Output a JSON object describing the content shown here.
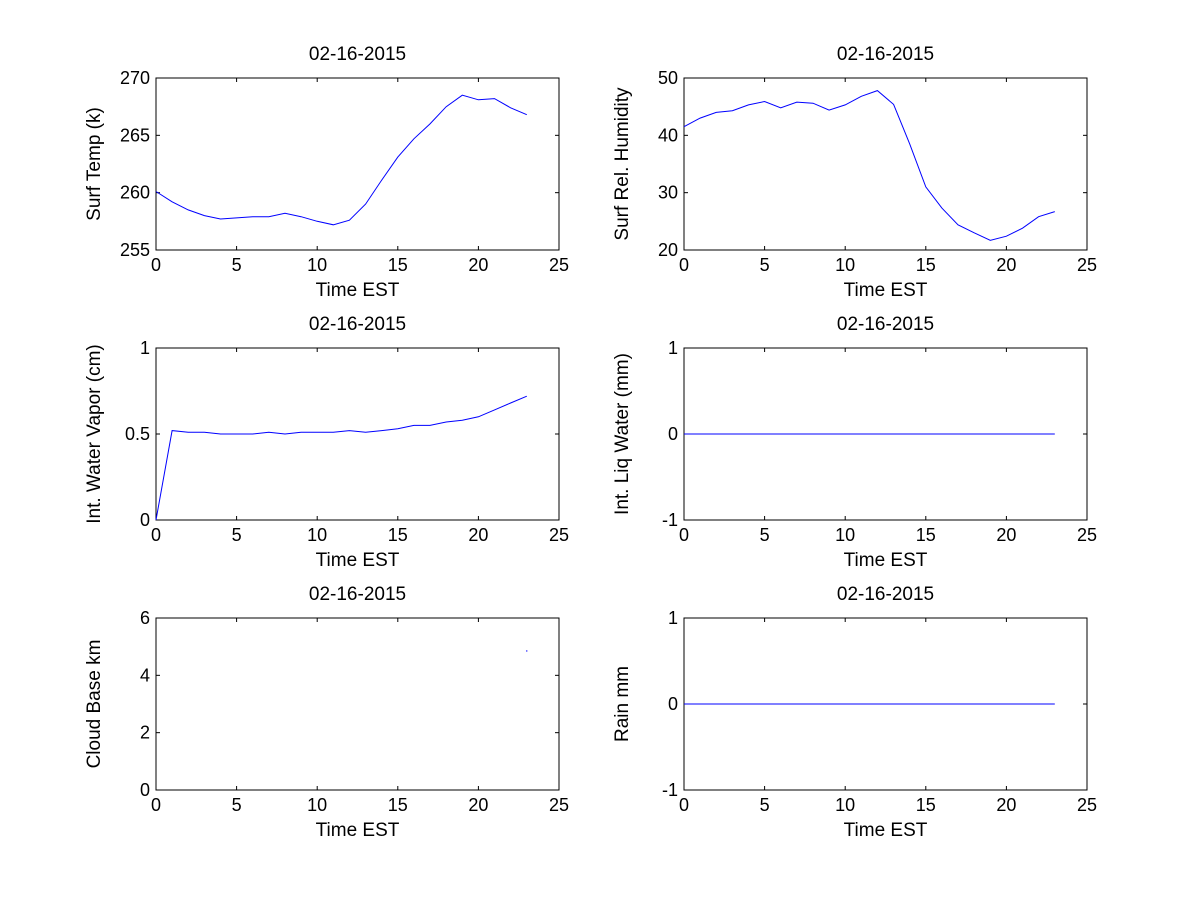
{
  "chart_data": [
    {
      "type": "line",
      "title": "02-16-2015",
      "xlabel": "Time EST",
      "ylabel": "Surf Temp (k)",
      "xlim": [
        0,
        25
      ],
      "ylim": [
        255,
        270
      ],
      "xticks": [
        0,
        5,
        10,
        15,
        20,
        25
      ],
      "yticks": [
        255,
        260,
        265,
        270
      ],
      "grid": false,
      "line_color": "#0000ff",
      "series": [
        {
          "x": [
            0,
            1,
            2,
            3,
            4,
            5,
            6,
            7,
            8,
            9,
            10,
            11,
            12,
            13,
            14,
            15,
            16,
            17,
            18,
            19,
            20,
            21,
            22,
            23
          ],
          "y": [
            260.1,
            259.2,
            258.5,
            258.0,
            257.7,
            257.8,
            257.9,
            257.9,
            258.2,
            257.9,
            257.5,
            257.2,
            257.6,
            259.0,
            261.1,
            263.1,
            264.7,
            266.0,
            267.5,
            268.5,
            268.1,
            268.2,
            267.4,
            266.8
          ]
        }
      ]
    },
    {
      "type": "line",
      "title": "02-16-2015",
      "xlabel": "Time EST",
      "ylabel": "Surf Rel. Humidity",
      "xlim": [
        0,
        25
      ],
      "ylim": [
        20,
        50
      ],
      "xticks": [
        0,
        5,
        10,
        15,
        20,
        25
      ],
      "yticks": [
        20,
        30,
        40,
        50
      ],
      "grid": false,
      "line_color": "#0000ff",
      "series": [
        {
          "x": [
            0,
            1,
            2,
            3,
            4,
            5,
            6,
            7,
            8,
            9,
            10,
            11,
            12,
            13,
            14,
            15,
            16,
            17,
            18,
            19,
            20,
            21,
            22,
            23
          ],
          "y": [
            41.5,
            43.0,
            44.0,
            44.3,
            45.3,
            45.9,
            44.8,
            45.8,
            45.6,
            44.4,
            45.3,
            46.8,
            47.8,
            45.4,
            38.5,
            31.0,
            27.3,
            24.4,
            23.0,
            21.7,
            22.4,
            23.8,
            25.8,
            26.7
          ]
        }
      ]
    },
    {
      "type": "line",
      "title": "02-16-2015",
      "xlabel": "Time EST",
      "ylabel": "Int. Water Vapor (cm)",
      "xlim": [
        0,
        25
      ],
      "ylim": [
        0,
        1
      ],
      "xticks": [
        0,
        5,
        10,
        15,
        20,
        25
      ],
      "yticks": [
        0,
        0.5,
        1
      ],
      "grid": false,
      "line_color": "#0000ff",
      "series": [
        {
          "x": [
            0,
            1,
            2,
            3,
            4,
            5,
            6,
            7,
            8,
            9,
            10,
            11,
            12,
            13,
            14,
            15,
            16,
            17,
            18,
            19,
            20,
            21,
            22,
            23
          ],
          "y": [
            0.0,
            0.52,
            0.51,
            0.51,
            0.5,
            0.5,
            0.5,
            0.51,
            0.5,
            0.51,
            0.51,
            0.51,
            0.52,
            0.51,
            0.52,
            0.53,
            0.55,
            0.55,
            0.57,
            0.58,
            0.6,
            0.64,
            0.68,
            0.72
          ]
        }
      ]
    },
    {
      "type": "line",
      "title": "02-16-2015",
      "xlabel": "Time EST",
      "ylabel": "Int. Liq Water (mm)",
      "xlim": [
        0,
        25
      ],
      "ylim": [
        -1,
        1
      ],
      "xticks": [
        0,
        5,
        10,
        15,
        20,
        25
      ],
      "yticks": [
        -1,
        0,
        1
      ],
      "grid": false,
      "line_color": "#0000ff",
      "series": [
        {
          "x": [
            0,
            23
          ],
          "y": [
            0,
            0
          ]
        }
      ]
    },
    {
      "type": "scatter",
      "title": "02-16-2015",
      "xlabel": "Time EST",
      "ylabel": "Cloud Base km",
      "xlim": [
        0,
        25
      ],
      "ylim": [
        0,
        6
      ],
      "xticks": [
        0,
        5,
        10,
        15,
        20,
        25
      ],
      "yticks": [
        0,
        2,
        4,
        6
      ],
      "grid": false,
      "line_color": "#0000ff",
      "series": [
        {
          "x": [
            23
          ],
          "y": [
            4.85
          ]
        }
      ]
    },
    {
      "type": "line",
      "title": "02-16-2015",
      "xlabel": "Time EST",
      "ylabel": "Rain mm",
      "xlim": [
        0,
        25
      ],
      "ylim": [
        -1,
        1
      ],
      "xticks": [
        0,
        5,
        10,
        15,
        20,
        25
      ],
      "yticks": [
        -1,
        0,
        1
      ],
      "grid": false,
      "line_color": "#0000ff",
      "series": [
        {
          "x": [
            0,
            23
          ],
          "y": [
            0,
            0
          ]
        }
      ]
    }
  ]
}
